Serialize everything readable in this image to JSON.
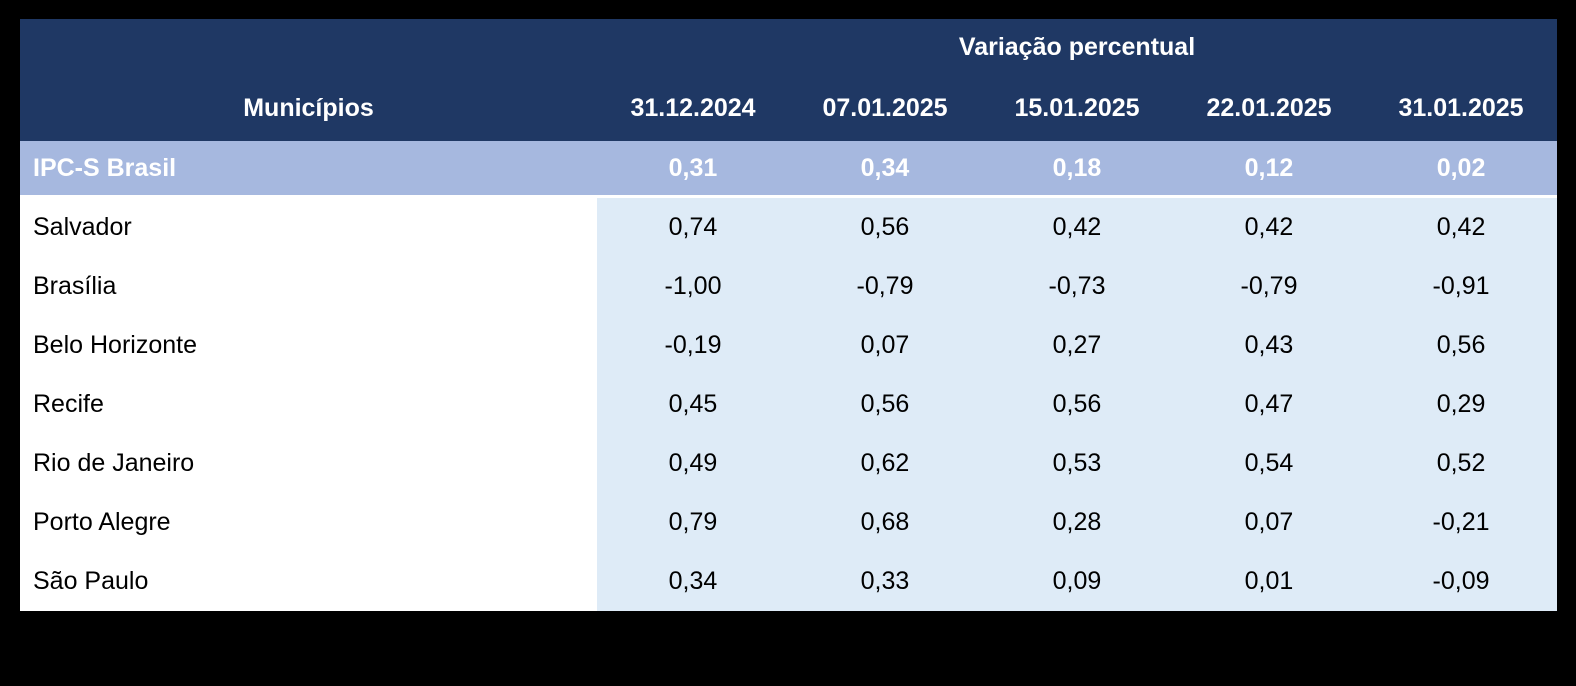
{
  "colors": {
    "page_background": "#000000",
    "header_background": "#1F3864",
    "header_text": "#FFFFFF",
    "highlight_row_background": "#A6B8DF",
    "highlight_row_text": "#FFFFFF",
    "value_cell_background": "#DEEBF7",
    "name_cell_background": "#FFFFFF",
    "body_text": "#000000"
  },
  "table": {
    "group_header": "Variação percentual",
    "first_column_header": "Municípios",
    "date_headers": [
      "31.12.2024",
      "07.01.2025",
      "15.01.2025",
      "22.01.2025",
      "31.01.2025"
    ],
    "highlight_row": {
      "name": "IPC-S Brasil",
      "values": [
        "0,31",
        "0,34",
        "0,18",
        "0,12",
        "0,02"
      ]
    },
    "rows": [
      {
        "name": "Salvador",
        "values": [
          "0,74",
          "0,56",
          "0,42",
          "0,42",
          "0,42"
        ]
      },
      {
        "name": "Brasília",
        "values": [
          "-1,00",
          "-0,79",
          "-0,73",
          "-0,79",
          "-0,91"
        ]
      },
      {
        "name": "Belo Horizonte",
        "values": [
          "-0,19",
          "0,07",
          "0,27",
          "0,43",
          "0,56"
        ]
      },
      {
        "name": "Recife",
        "values": [
          "0,45",
          "0,56",
          "0,56",
          "0,47",
          "0,29"
        ]
      },
      {
        "name": "Rio de Janeiro",
        "values": [
          "0,49",
          "0,62",
          "0,53",
          "0,54",
          "0,52"
        ]
      },
      {
        "name": "Porto Alegre",
        "values": [
          "0,79",
          "0,68",
          "0,28",
          "0,07",
          "-0,21"
        ]
      },
      {
        "name": "São Paulo",
        "values": [
          "0,34",
          "0,33",
          "0,09",
          "0,01",
          "-0,09"
        ]
      }
    ]
  },
  "chart_data": {
    "type": "table",
    "title": "Variação percentual",
    "categories": [
      "31.12.2024",
      "07.01.2025",
      "15.01.2025",
      "22.01.2025",
      "31.01.2025"
    ],
    "row_header": "Municípios",
    "series": [
      {
        "name": "IPC-S Brasil",
        "values": [
          0.31,
          0.34,
          0.18,
          0.12,
          0.02
        ]
      },
      {
        "name": "Salvador",
        "values": [
          0.74,
          0.56,
          0.42,
          0.42,
          0.42
        ]
      },
      {
        "name": "Brasília",
        "values": [
          -1.0,
          -0.79,
          -0.73,
          -0.79,
          -0.91
        ]
      },
      {
        "name": "Belo Horizonte",
        "values": [
          -0.19,
          0.07,
          0.27,
          0.43,
          0.56
        ]
      },
      {
        "name": "Recife",
        "values": [
          0.45,
          0.56,
          0.56,
          0.47,
          0.29
        ]
      },
      {
        "name": "Rio de Janeiro",
        "values": [
          0.49,
          0.62,
          0.53,
          0.54,
          0.52
        ]
      },
      {
        "name": "Porto Alegre",
        "values": [
          0.79,
          0.68,
          0.28,
          0.07,
          -0.21
        ]
      },
      {
        "name": "São Paulo",
        "values": [
          0.34,
          0.33,
          0.09,
          0.01,
          -0.09
        ]
      }
    ]
  }
}
